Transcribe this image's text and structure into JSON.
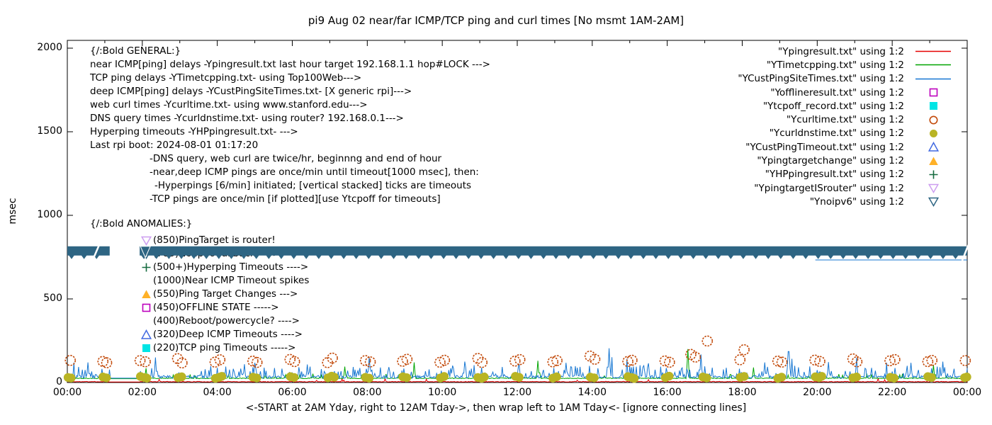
{
  "chart_data": {
    "type": "line",
    "title": "pi9 Aug 02  near/far ICMP/TCP ping and curl times [No msmt 1AM-2AM]",
    "xlabel": "<-START at 2AM Yday, right to 12AM Tday->, then wrap left to 1AM Tday<- [ignore connecting lines]",
    "ylabel": "msec",
    "x_ticks": [
      "00:00",
      "02:00",
      "04:00",
      "06:00",
      "08:00",
      "10:00",
      "12:00",
      "14:00",
      "16:00",
      "18:00",
      "20:00",
      "22:00",
      "00:00"
    ],
    "x_hours_range": [
      0,
      24
    ],
    "y_ticks": [
      0,
      500,
      1000,
      1500,
      2000
    ],
    "ylim": [
      0,
      2046
    ],
    "grid": false,
    "legend_position": "top-right-inside",
    "no_measurement_window_hours": [
      1.13,
      1.93
    ],
    "legend": [
      {
        "label": "\"Ypingresult.txt\" using 1:2",
        "marker": "line",
        "color": "#e60000"
      },
      {
        "label": "\"YTimetcpping.txt\" using 1:2",
        "marker": "line",
        "color": "#00a400"
      },
      {
        "label": "\"YCustPingSiteTimes.txt\" using 1:2",
        "marker": "line",
        "color": "#1777d2"
      },
      {
        "label": "\"Yofflineresult.txt\" using 1:2",
        "marker": "square-open",
        "color": "#bd00bd"
      },
      {
        "label": "\"Ytcpoff_record.txt\" using 1:2",
        "marker": "square-filled",
        "color": "#00e5e5"
      },
      {
        "label": "\"Ycurltime.txt\" using 1:2",
        "marker": "circle-open",
        "color": "#c24909"
      },
      {
        "label": "\"Ycurldnstime.txt\" using 1:2",
        "marker": "circle-filled",
        "color": "#b9b424"
      },
      {
        "label": "\"YCustPingTimeout.txt\" using 1:2",
        "marker": "triangle-up-open",
        "color": "#4169e1"
      },
      {
        "label": "\"Ypingtargetchange\" using 1:2",
        "marker": "triangle-up-filled",
        "color": "#ffb127"
      },
      {
        "label": "\"YHPpingresult.txt\" using 1:2",
        "marker": "plus",
        "color": "#156b3f"
      },
      {
        "label": "\"YpingtargetISrouter\" using 1:2",
        "marker": "triangle-down-open",
        "color": "#cd9ef0"
      },
      {
        "label": "\"Ynoipv6\" using 1:2",
        "marker": "triangle-down-open",
        "color": "#2e6583"
      }
    ],
    "line_series": [
      {
        "name": "Ypingresult.txt",
        "color": "#e60000",
        "base": 3,
        "noise": 4,
        "burst_prob": 0,
        "burst_amp": 0,
        "rare": 14,
        "spikes": []
      },
      {
        "name": "YTimetcpping.txt",
        "color": "#00a400",
        "base": 23,
        "noise": 5,
        "burst_prob": 0.04,
        "burst_amp": 14,
        "rare": 0,
        "spikes": [
          [
            2.1,
            85
          ],
          [
            7.4,
            95
          ],
          [
            9.25,
            120
          ],
          [
            12.55,
            130
          ],
          [
            16.55,
            200
          ],
          [
            18.3,
            90
          ],
          [
            23.1,
            105
          ]
        ]
      },
      {
        "name": "YCustPingSiteTimes.txt",
        "color": "#1777d2",
        "base": 26,
        "noise": 16,
        "burst_prob": 0.22,
        "burst_amp": 52,
        "rare": 55,
        "spikes": [
          [
            0.55,
            120
          ],
          [
            2.35,
            150
          ],
          [
            5.0,
            118
          ],
          [
            6.4,
            108
          ],
          [
            8.05,
            148
          ],
          [
            10.6,
            125
          ],
          [
            12.05,
            112
          ],
          [
            13.3,
            118
          ],
          [
            14.45,
            205
          ],
          [
            15.5,
            115
          ],
          [
            16.9,
            168
          ],
          [
            18.6,
            120
          ],
          [
            19.23,
            185
          ],
          [
            20.3,
            122
          ],
          [
            21.05,
            148
          ],
          [
            22.5,
            118
          ],
          [
            23.35,
            125
          ]
        ]
      }
    ],
    "curl_points": [
      [
        0.08,
        132
      ],
      [
        0.95,
        126
      ],
      [
        1.05,
        118
      ],
      [
        1.94,
        131
      ],
      [
        2.08,
        124
      ],
      [
        2.94,
        143
      ],
      [
        3.06,
        117
      ],
      [
        3.94,
        122
      ],
      [
        4.07,
        136
      ],
      [
        4.95,
        128
      ],
      [
        5.06,
        120
      ],
      [
        5.94,
        138
      ],
      [
        6.06,
        125
      ],
      [
        6.94,
        119
      ],
      [
        7.07,
        146
      ],
      [
        7.95,
        131
      ],
      [
        8.08,
        123
      ],
      [
        8.94,
        127
      ],
      [
        9.06,
        139
      ],
      [
        9.94,
        121
      ],
      [
        10.06,
        133
      ],
      [
        10.95,
        144
      ],
      [
        11.06,
        120
      ],
      [
        11.94,
        128
      ],
      [
        12.07,
        137
      ],
      [
        12.95,
        123
      ],
      [
        13.06,
        131
      ],
      [
        13.94,
        158
      ],
      [
        14.07,
        139
      ],
      [
        14.95,
        126
      ],
      [
        15.06,
        133
      ],
      [
        15.94,
        129
      ],
      [
        16.06,
        121
      ],
      [
        16.63,
        168
      ],
      [
        16.75,
        152
      ],
      [
        17.07,
        248
      ],
      [
        17.94,
        136
      ],
      [
        18.05,
        196
      ],
      [
        18.95,
        128
      ],
      [
        19.06,
        122
      ],
      [
        19.94,
        134
      ],
      [
        20.07,
        126
      ],
      [
        20.95,
        141
      ],
      [
        21.06,
        124
      ],
      [
        21.94,
        130
      ],
      [
        22.07,
        137
      ],
      [
        22.95,
        125
      ],
      [
        23.06,
        132
      ],
      [
        23.95,
        131
      ]
    ],
    "dns_points": [
      [
        0.02,
        30
      ],
      [
        0.1,
        27
      ],
      [
        0.95,
        33
      ],
      [
        1.04,
        28
      ],
      [
        1.95,
        36
      ],
      [
        2.05,
        30
      ],
      [
        2.12,
        26
      ],
      [
        2.95,
        29
      ],
      [
        3.05,
        34
      ],
      [
        3.95,
        25
      ],
      [
        4.05,
        31
      ],
      [
        4.12,
        37
      ],
      [
        4.95,
        32
      ],
      [
        5.05,
        27
      ],
      [
        5.95,
        35
      ],
      [
        6.05,
        30
      ],
      [
        6.95,
        28
      ],
      [
        7.05,
        38
      ],
      [
        7.12,
        32
      ],
      [
        7.95,
        31
      ],
      [
        8.05,
        26
      ],
      [
        8.95,
        34
      ],
      [
        9.05,
        29
      ],
      [
        9.95,
        27
      ],
      [
        10.05,
        36
      ],
      [
        10.95,
        30
      ],
      [
        11.05,
        25
      ],
      [
        11.12,
        33
      ],
      [
        11.95,
        37
      ],
      [
        12.05,
        31
      ],
      [
        12.95,
        26
      ],
      [
        13.05,
        34
      ],
      [
        13.95,
        32
      ],
      [
        14.05,
        28
      ],
      [
        14.95,
        35
      ],
      [
        15.05,
        30
      ],
      [
        15.12,
        24
      ],
      [
        15.95,
        29
      ],
      [
        16.05,
        38
      ],
      [
        16.95,
        33
      ],
      [
        17.05,
        27
      ],
      [
        17.95,
        31
      ],
      [
        18.05,
        36
      ],
      [
        18.95,
        25
      ],
      [
        19.05,
        32
      ],
      [
        19.95,
        34
      ],
      [
        20.05,
        29
      ],
      [
        20.12,
        37
      ],
      [
        20.95,
        28
      ],
      [
        21.05,
        33
      ],
      [
        21.95,
        31
      ],
      [
        22.05,
        26
      ],
      [
        22.95,
        35
      ],
      [
        23.05,
        30
      ],
      [
        23.93,
        29
      ],
      [
        23.99,
        33
      ]
    ],
    "noipv6_band": {
      "value": 785,
      "color": "#2e6583",
      "segments": [
        [
          0,
          1.13
        ],
        [
          1.93,
          24
        ]
      ],
      "tip_spacing_hours": 0.333
    },
    "connector_line": {
      "color": "#1777d2",
      "value": 733,
      "from": 19.95,
      "to": 24
    },
    "annotations": {
      "general": {
        "header": "{/:Bold GENERAL:}",
        "lines": [
          {
            "text": "near ICMP[ping] delays -Ypingresult.txt last hour target 192.168.1.1 hop#LOCK --->",
            "indent": 0
          },
          {
            "text": "TCP ping delays -YTimetcpping.txt- using Top100Web--->",
            "indent": 0
          },
          {
            "text": "deep ICMP[ping] delays -YCustPingSiteTimes.txt- [X generic rpi]--->",
            "indent": 0
          },
          {
            "text": "web curl times -Ycurltime.txt- using www.stanford.edu--->",
            "indent": 0
          },
          {
            "text": "DNS query times -Ycurldnstime.txt- using router? 192.168.0.1--->",
            "indent": 0
          },
          {
            "text": "Hyperping timeouts -YHPpingresult.txt- --->",
            "indent": 0
          },
          {
            "text": "Last rpi boot: 2024-08-01 01:17:20",
            "indent": 0
          },
          {
            "text": "-DNS query, web curl are twice/hr, beginnng and end of hour",
            "indent": 1
          },
          {
            "text": "-near,deep ICMP pings are once/min until timeout[1000 msec], then:",
            "indent": 1
          },
          {
            "text": "-Hyperpings [6/min] initiated; [vertical stacked] ticks are timeouts",
            "indent": 2
          },
          {
            "text": "-TCP pings are once/min [if plotted][use Ytcpoff for timeouts]",
            "indent": 1
          }
        ]
      },
      "anomalies": {
        "header": "{/:Bold ANOMALIES:}",
        "rows": [
          {
            "marker": "triangle-down-open",
            "color": "#cd9ef0",
            "text": "(850)PingTarget is router!"
          },
          {
            "marker": "triangle-down-open",
            "color": "#2e6583",
            "text": "(785)No ipv6 fallback ---->",
            "obscured_by_band": true
          },
          {
            "marker": "plus",
            "color": "#156b3f",
            "text": "(500+)Hyperping Timeouts ---->"
          },
          {
            "marker": "none",
            "color": "",
            "text": "(1000)Near ICMP Timeout spikes"
          },
          {
            "marker": "triangle-up-filled",
            "color": "#ffb127",
            "text": "(550)Ping Target Changes --->"
          },
          {
            "marker": "square-open",
            "color": "#bd00bd",
            "text": "(450)OFFLINE STATE ----->"
          },
          {
            "marker": "none",
            "color": "",
            "text": "(400)Reboot/powercycle? ---->"
          },
          {
            "marker": "triangle-up-open",
            "color": "#4169e1",
            "text": "(320)Deep ICMP Timeouts ---->"
          },
          {
            "marker": "square-filled",
            "color": "#00e5e5",
            "text": "(220)TCP ping Timeouts ----->"
          }
        ]
      }
    }
  }
}
